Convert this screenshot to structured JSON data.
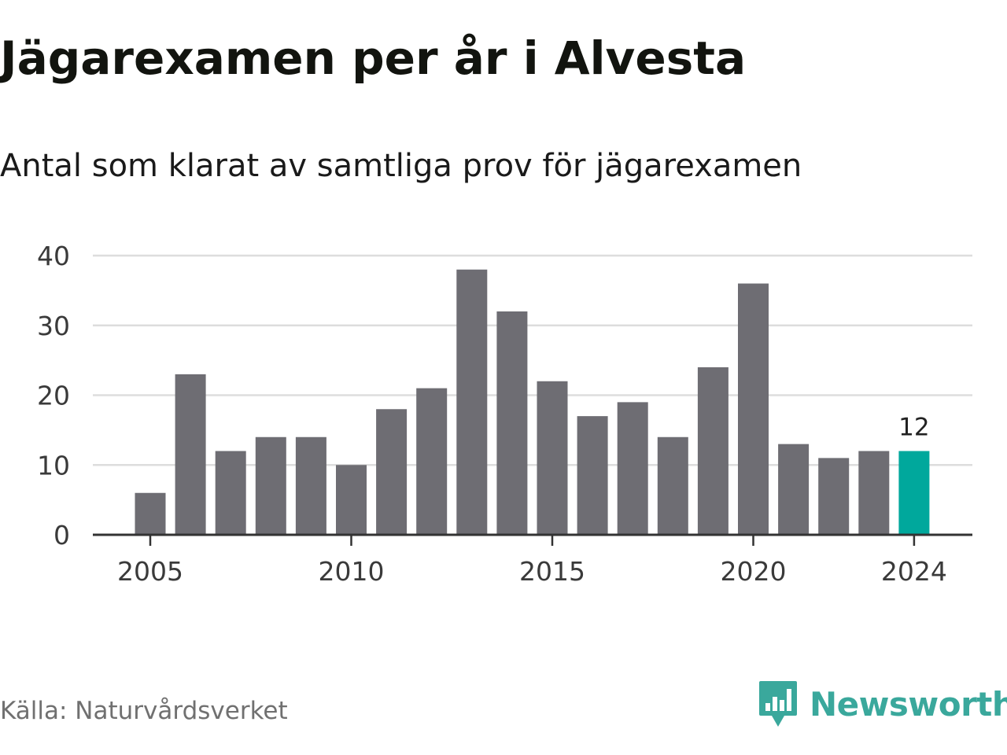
{
  "title": "Jägarexamen per år i Alvesta",
  "subtitle": "Antal som klarat av samtliga prov för jägarexamen",
  "source": "Källa: Naturvårdsverket",
  "brand": "Newsworthy",
  "colors": {
    "bar": "#6e6d73",
    "highlight": "#00a89c",
    "grid": "#dddddd",
    "axis": "#333333",
    "brand": "#3aa89c"
  },
  "chart_data": {
    "type": "bar",
    "categories": [
      "2005",
      "2006",
      "2007",
      "2008",
      "2009",
      "2010",
      "2011",
      "2012",
      "2013",
      "2014",
      "2015",
      "2016",
      "2017",
      "2018",
      "2019",
      "2020",
      "2021",
      "2022",
      "2023",
      "2024"
    ],
    "values": [
      6,
      23,
      12,
      14,
      14,
      10,
      18,
      21,
      38,
      32,
      22,
      17,
      19,
      14,
      24,
      36,
      13,
      11,
      12,
      12
    ],
    "highlight_index": 19,
    "highlight_label": "12",
    "ylim": [
      0,
      40
    ],
    "yticks": [
      0,
      10,
      20,
      30,
      40
    ],
    "xtick_labels": [
      "2005",
      "2010",
      "2015",
      "2020",
      "2024"
    ],
    "grid": true
  }
}
